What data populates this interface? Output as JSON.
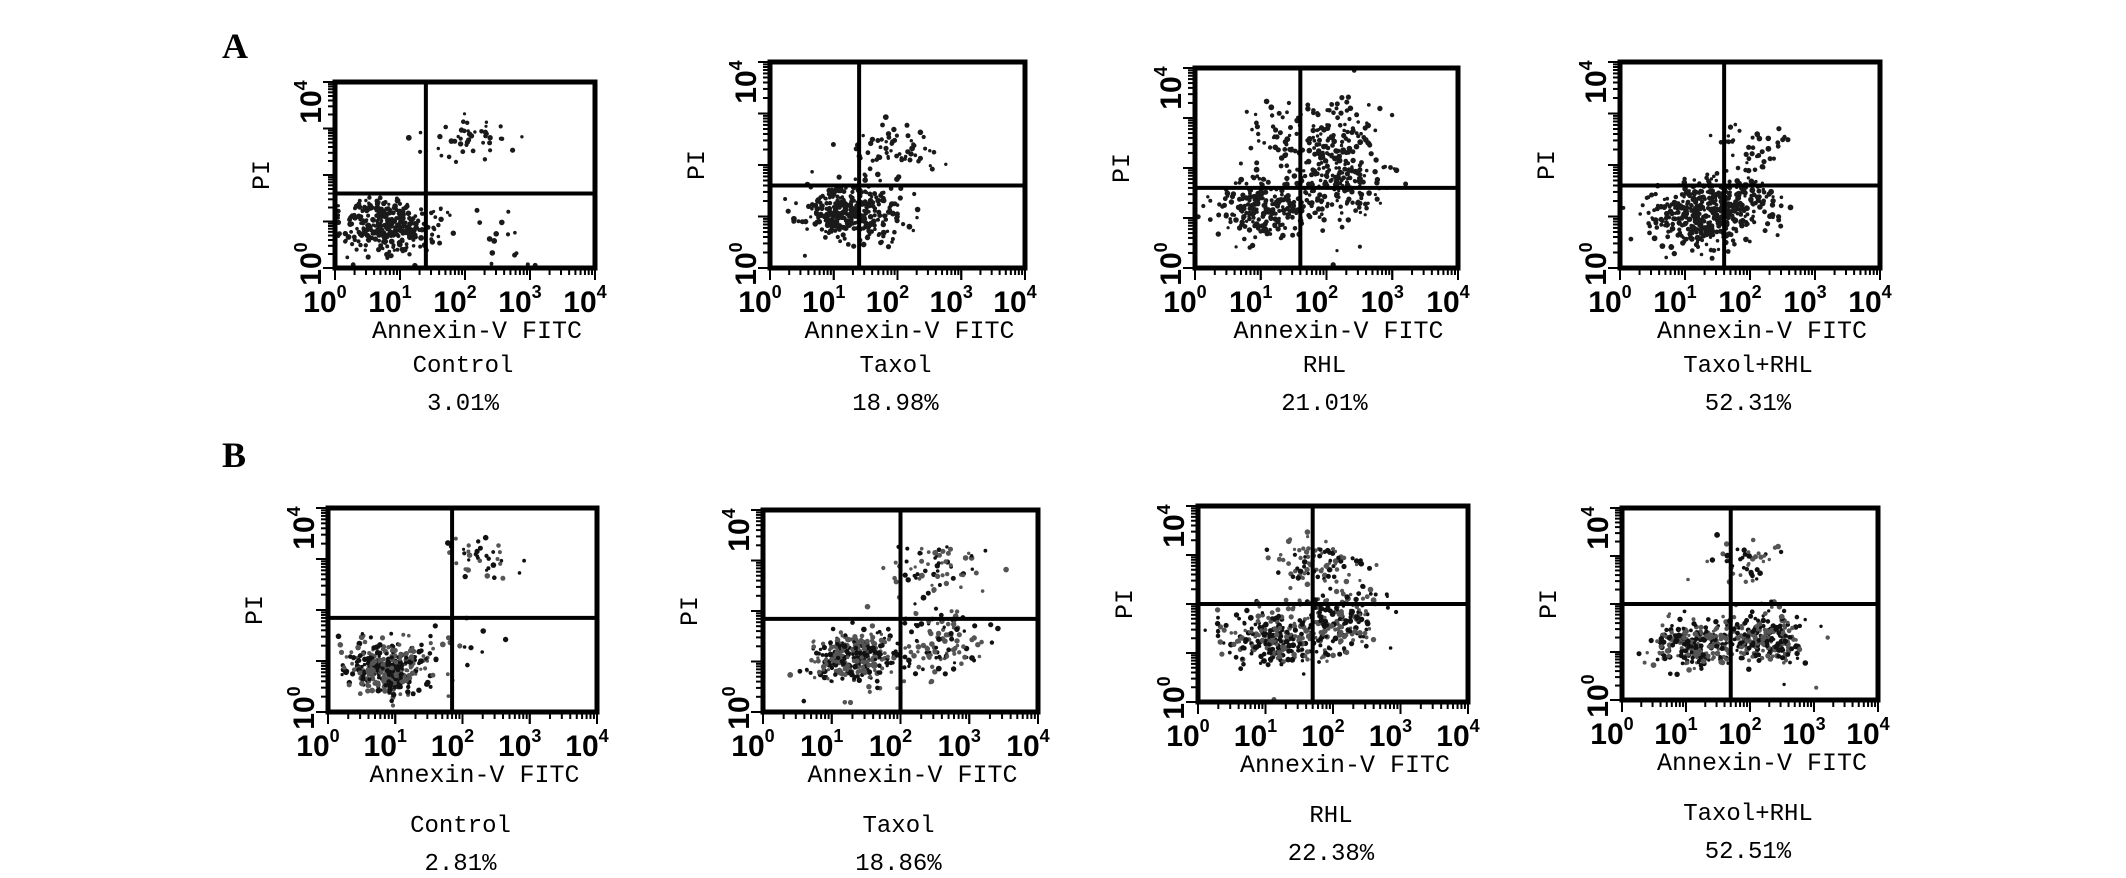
{
  "figure": {
    "panel_labels": [
      "A",
      "B"
    ]
  },
  "chart_data": [
    {
      "type": "scatter",
      "row": "A",
      "group": "Control",
      "value_label": "3.01%",
      "xlabel": "Annexin-V  FITC",
      "ylabel": "PI",
      "scale": "log",
      "xlim": [
        1,
        10000
      ],
      "ylim": [
        1,
        10000
      ],
      "x_ticks": [
        {
          "base": "10",
          "exp": "0"
        },
        {
          "base": "10",
          "exp": "1"
        },
        {
          "base": "10",
          "exp": "2"
        },
        {
          "base": "10",
          "exp": "3"
        },
        {
          "base": "10",
          "exp": "4"
        }
      ],
      "y_ticks": [
        {
          "base": "10",
          "exp": "0"
        },
        {
          "base": "10",
          "exp": "4"
        }
      ],
      "quadrant_gate": {
        "x": 25,
        "y": 40
      },
      "clusters": [
        {
          "x": 6,
          "y": 8,
          "sx": 0.35,
          "sy": 0.3,
          "n": 330
        },
        {
          "x": 100,
          "y": 600,
          "sx": 0.35,
          "sy": 0.28,
          "n": 45
        },
        {
          "x": 300,
          "y": 6,
          "sx": 0.35,
          "sy": 0.35,
          "n": 15
        }
      ]
    },
    {
      "type": "scatter",
      "row": "A",
      "group": "Taxol",
      "value_label": "18.98%",
      "xlabel": "Annexin-V  FITC",
      "ylabel": "PI",
      "scale": "log",
      "xlim": [
        1,
        10000
      ],
      "ylim": [
        1,
        10000
      ],
      "x_ticks": [
        {
          "base": "10",
          "exp": "0"
        },
        {
          "base": "10",
          "exp": "1"
        },
        {
          "base": "10",
          "exp": "2"
        },
        {
          "base": "10",
          "exp": "3"
        },
        {
          "base": "10",
          "exp": "4"
        }
      ],
      "y_ticks": [
        {
          "base": "10",
          "exp": "0"
        },
        {
          "base": "10",
          "exp": "4"
        }
      ],
      "quadrant_gate": {
        "x": 25,
        "y": 40
      },
      "clusters": [
        {
          "x": 15,
          "y": 12,
          "sx": 0.35,
          "sy": 0.28,
          "n": 300
        },
        {
          "x": 90,
          "y": 200,
          "sx": 0.3,
          "sy": 0.2,
          "n": 60
        },
        {
          "x": 60,
          "y": 15,
          "sx": 0.3,
          "sy": 0.3,
          "n": 50
        }
      ]
    },
    {
      "type": "scatter",
      "row": "A",
      "group": "RHL",
      "value_label": "21.01%",
      "xlabel": "Annexin-V  FITC",
      "ylabel": "PI",
      "scale": "log",
      "xlim": [
        1,
        10000
      ],
      "ylim": [
        1,
        10000
      ],
      "x_ticks": [
        {
          "base": "10",
          "exp": "0"
        },
        {
          "base": "10",
          "exp": "1"
        },
        {
          "base": "10",
          "exp": "2"
        },
        {
          "base": "10",
          "exp": "3"
        },
        {
          "base": "10",
          "exp": "4"
        }
      ],
      "y_ticks": [
        {
          "base": "10",
          "exp": "0"
        },
        {
          "base": "10",
          "exp": "4"
        }
      ],
      "quadrant_gate": {
        "x": 40,
        "y": 40
      },
      "clusters": [
        {
          "x": 10,
          "y": 15,
          "sx": 0.35,
          "sy": 0.3,
          "n": 230
        },
        {
          "x": 120,
          "y": 120,
          "sx": 0.4,
          "sy": 0.6,
          "n": 330
        },
        {
          "x": 15,
          "y": 600,
          "sx": 0.25,
          "sy": 0.25,
          "n": 20
        }
      ]
    },
    {
      "type": "scatter",
      "row": "A",
      "group": "Taxol+RHL",
      "value_label": "52.31%",
      "xlabel": "Annexin-V  FITC",
      "ylabel": "PI",
      "scale": "log",
      "xlim": [
        1,
        10000
      ],
      "ylim": [
        1,
        10000
      ],
      "x_ticks": [
        {
          "base": "10",
          "exp": "0"
        },
        {
          "base": "10",
          "exp": "1"
        },
        {
          "base": "10",
          "exp": "2"
        },
        {
          "base": "10",
          "exp": "3"
        },
        {
          "base": "10",
          "exp": "4"
        }
      ],
      "y_ticks": [
        {
          "base": "10",
          "exp": "0"
        },
        {
          "base": "10",
          "exp": "4"
        }
      ],
      "quadrant_gate": {
        "x": 40,
        "y": 40
      },
      "clusters": [
        {
          "x": 15,
          "y": 10,
          "sx": 0.38,
          "sy": 0.3,
          "n": 330
        },
        {
          "x": 60,
          "y": 20,
          "sx": 0.3,
          "sy": 0.3,
          "n": 170
        },
        {
          "x": 100,
          "y": 200,
          "sx": 0.3,
          "sy": 0.25,
          "n": 40
        }
      ]
    },
    {
      "type": "scatter",
      "row": "B",
      "group": "Control",
      "value_label": "2.81%",
      "xlabel": "Annexin-V  FITC",
      "ylabel": "PI",
      "scale": "log",
      "xlim": [
        1,
        10000
      ],
      "ylim": [
        1,
        10000
      ],
      "x_ticks": [
        {
          "base": "10",
          "exp": "0"
        },
        {
          "base": "10",
          "exp": "1"
        },
        {
          "base": "10",
          "exp": "2"
        },
        {
          "base": "10",
          "exp": "3"
        },
        {
          "base": "10",
          "exp": "4"
        }
      ],
      "y_ticks": [
        {
          "base": "10",
          "exp": "0"
        },
        {
          "base": "10",
          "exp": "4"
        }
      ],
      "quadrant_gate": {
        "x": 70,
        "y": 70
      },
      "clusters": [
        {
          "x": 8,
          "y": 7,
          "sx": 0.3,
          "sy": 0.25,
          "n": 380
        },
        {
          "x": 150,
          "y": 900,
          "sx": 0.3,
          "sy": 0.2,
          "n": 40
        },
        {
          "x": 90,
          "y": 20,
          "sx": 0.3,
          "sy": 0.3,
          "n": 15
        }
      ]
    },
    {
      "type": "scatter",
      "row": "B",
      "group": "Taxol",
      "value_label": "18.86%",
      "xlabel": "Annexin-V  FITC",
      "ylabel": "PI",
      "scale": "log",
      "xlim": [
        1,
        10000
      ],
      "ylim": [
        1,
        10000
      ],
      "x_ticks": [
        {
          "base": "10",
          "exp": "0"
        },
        {
          "base": "10",
          "exp": "1"
        },
        {
          "base": "10",
          "exp": "2"
        },
        {
          "base": "10",
          "exp": "3"
        },
        {
          "base": "10",
          "exp": "4"
        }
      ],
      "y_ticks": [
        {
          "base": "10",
          "exp": "0"
        },
        {
          "base": "10",
          "exp": "4"
        }
      ],
      "quadrant_gate": {
        "x": 100,
        "y": 70
      },
      "clusters": [
        {
          "x": 20,
          "y": 12,
          "sx": 0.3,
          "sy": 0.25,
          "n": 320
        },
        {
          "x": 300,
          "y": 25,
          "sx": 0.35,
          "sy": 0.35,
          "n": 120
        },
        {
          "x": 300,
          "y": 800,
          "sx": 0.35,
          "sy": 0.3,
          "n": 70
        }
      ]
    },
    {
      "type": "scatter",
      "row": "B",
      "group": "RHL",
      "value_label": "22.38%",
      "xlabel": "Annexin-V  FITC",
      "ylabel": "PI",
      "scale": "log",
      "xlim": [
        1,
        10000
      ],
      "ylim": [
        1,
        10000
      ],
      "x_ticks": [
        {
          "base": "10",
          "exp": "0"
        },
        {
          "base": "10",
          "exp": "1"
        },
        {
          "base": "10",
          "exp": "2"
        },
        {
          "base": "10",
          "exp": "3"
        },
        {
          "base": "10",
          "exp": "4"
        }
      ],
      "y_ticks": [
        {
          "base": "10",
          "exp": "0"
        },
        {
          "base": "10",
          "exp": "4"
        }
      ],
      "quadrant_gate": {
        "x": 50,
        "y": 100
      },
      "clusters": [
        {
          "x": 15,
          "y": 20,
          "sx": 0.38,
          "sy": 0.3,
          "n": 280
        },
        {
          "x": 120,
          "y": 50,
          "sx": 0.35,
          "sy": 0.35,
          "n": 180
        },
        {
          "x": 60,
          "y": 800,
          "sx": 0.35,
          "sy": 0.25,
          "n": 90
        }
      ]
    },
    {
      "type": "scatter",
      "row": "B",
      "group": "Taxol+RHL",
      "value_label": "52.51%",
      "xlabel": "Annexin-V  FITC",
      "ylabel": "PI",
      "scale": "log",
      "xlim": [
        1,
        10000
      ],
      "ylim": [
        1,
        10000
      ],
      "x_ticks": [
        {
          "base": "10",
          "exp": "0"
        },
        {
          "base": "10",
          "exp": "1"
        },
        {
          "base": "10",
          "exp": "2"
        },
        {
          "base": "10",
          "exp": "3"
        },
        {
          "base": "10",
          "exp": "4"
        }
      ],
      "y_ticks": [
        {
          "base": "10",
          "exp": "0"
        },
        {
          "base": "10",
          "exp": "4"
        }
      ],
      "quadrant_gate": {
        "x": 50,
        "y": 100
      },
      "clusters": [
        {
          "x": 12,
          "y": 15,
          "sx": 0.3,
          "sy": 0.25,
          "n": 240
        },
        {
          "x": 150,
          "y": 20,
          "sx": 0.35,
          "sy": 0.3,
          "n": 260
        },
        {
          "x": 100,
          "y": 800,
          "sx": 0.35,
          "sy": 0.25,
          "n": 45
        }
      ]
    }
  ]
}
